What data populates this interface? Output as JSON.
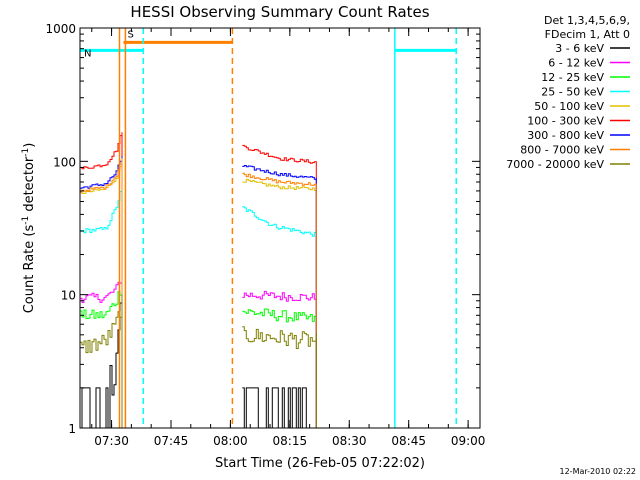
{
  "chart_data": {
    "type": "line",
    "title": "HESSI Observing Summary Count Rates",
    "xlabel": "Start Time (26-Feb-05 07:22:02)",
    "ylabel_main": "Count Rate (s",
    "ylabel_sup1": "-1",
    "ylabel_mid": " detector",
    "ylabel_sup2": "-1",
    "ylabel_end": ")",
    "yscale": "log",
    "ylim": [
      1,
      1000
    ],
    "xlim": [
      "07:22:02",
      "09:03:00"
    ],
    "xticks": [
      "07:30",
      "07:45",
      "08:00",
      "08:15",
      "08:30",
      "08:45",
      "09:00"
    ],
    "yticks": [
      "1",
      "10",
      "100",
      "1000"
    ],
    "legend_header": [
      "Det 1,3,4,5,6,9,",
      "FDecim 1, Att 0"
    ],
    "legend_position": "top-right outside",
    "timestamp": "12-Mar-2010 02:22",
    "flags": [
      {
        "label": "S",
        "color": "#ff8000",
        "level": 780,
        "start": "07:33:00",
        "end": "08:00:30"
      },
      {
        "label": "N",
        "color": "#00ffff",
        "level": 680,
        "start": "07:22:02",
        "end": "07:38:00"
      },
      {
        "label": "",
        "color": "#00ffff",
        "level": 680,
        "start": "08:41:30",
        "end": "08:57:00"
      }
    ],
    "vlines": [
      {
        "time": "07:32:00",
        "color": "#ff8000",
        "style": "solid"
      },
      {
        "time": "07:33:30",
        "color": "#ff8000",
        "style": "solid"
      },
      {
        "time": "07:38:00",
        "color": "#00ffff",
        "style": "dashed"
      },
      {
        "time": "08:00:30",
        "color": "#ff8000",
        "style": "dashed"
      },
      {
        "time": "08:41:30",
        "color": "#00ffff",
        "style": "solid"
      },
      {
        "time": "08:57:00",
        "color": "#00ffff",
        "style": "dashed"
      }
    ],
    "segments": [
      {
        "start": "07:22:02",
        "end": "07:33:00"
      },
      {
        "start": "08:03:00",
        "end": "08:22:00"
      }
    ],
    "series": [
      {
        "name": "3 - 6 keV",
        "color": "#000000",
        "seg1": [
          [
            0,
            1.0
          ],
          [
            0.6,
            1.5
          ],
          [
            0.8,
            3
          ],
          [
            0.9,
            6
          ],
          [
            1.0,
            12
          ]
        ],
        "seg2": [
          [
            0,
            1.2
          ],
          [
            0.5,
            1.2
          ],
          [
            0.9,
            1.0
          ],
          [
            1.0,
            1.0
          ]
        ],
        "noise": 0.5
      },
      {
        "name": "6 - 12 keV",
        "color": "#ff00ff",
        "seg1": [
          [
            0,
            9.5
          ],
          [
            0.6,
            9.5
          ],
          [
            0.85,
            11
          ],
          [
            1.0,
            14
          ]
        ],
        "seg2": [
          [
            0,
            10
          ],
          [
            1.0,
            9.5
          ]
        ],
        "noise": 0.08
      },
      {
        "name": "12 - 25 keV",
        "color": "#00ff00",
        "seg1": [
          [
            0,
            7
          ],
          [
            0.6,
            7
          ],
          [
            0.85,
            9
          ],
          [
            1.0,
            12
          ]
        ],
        "seg2": [
          [
            0,
            7.5
          ],
          [
            1.0,
            6.5
          ]
        ],
        "noise": 0.1
      },
      {
        "name": "25 - 50 keV",
        "color": "#00ffff",
        "seg1": [
          [
            0,
            30
          ],
          [
            0.6,
            31
          ],
          [
            0.85,
            45
          ],
          [
            1.0,
            65
          ]
        ],
        "seg2": [
          [
            0,
            45
          ],
          [
            0.4,
            33
          ],
          [
            1.0,
            28
          ]
        ],
        "noise": 0.04
      },
      {
        "name": "50 - 100 keV",
        "color": "#e0c000",
        "seg1": [
          [
            0,
            58
          ],
          [
            0.6,
            62
          ],
          [
            0.85,
            75
          ],
          [
            1.0,
            100
          ]
        ],
        "seg2": [
          [
            0,
            72
          ],
          [
            0.5,
            64
          ],
          [
            1.0,
            62
          ]
        ],
        "noise": 0.03
      },
      {
        "name": "100 - 300 keV",
        "color": "#ff0000",
        "seg1": [
          [
            0,
            88
          ],
          [
            0.6,
            95
          ],
          [
            0.85,
            120
          ],
          [
            1.0,
            170
          ]
        ],
        "seg2": [
          [
            0,
            130
          ],
          [
            0.5,
            105
          ],
          [
            1.0,
            98
          ]
        ],
        "noise": 0.03
      },
      {
        "name": "300 - 800 keV",
        "color": "#0000ff",
        "seg1": [
          [
            0,
            63
          ],
          [
            0.6,
            68
          ],
          [
            0.85,
            82
          ],
          [
            1.0,
            110
          ]
        ],
        "seg2": [
          [
            0,
            92
          ],
          [
            0.5,
            80
          ],
          [
            1.0,
            74
          ]
        ],
        "noise": 0.03
      },
      {
        "name": "800 - 7000 keV",
        "color": "#ff8000",
        "seg1": [
          [
            0,
            60
          ],
          [
            0.6,
            64
          ],
          [
            0.85,
            78
          ],
          [
            1.0,
            105
          ]
        ],
        "seg2": [
          [
            0,
            80
          ],
          [
            0.5,
            70
          ],
          [
            1.0,
            67
          ]
        ],
        "noise": 0.03
      },
      {
        "name": "7000 - 20000 keV",
        "color": "#808000",
        "seg1": [
          [
            0,
            4
          ],
          [
            0.6,
            4.5
          ],
          [
            0.85,
            6
          ],
          [
            1.0,
            9
          ]
        ],
        "seg2": [
          [
            0,
            5
          ],
          [
            1.0,
            4.5
          ]
        ],
        "noise": 0.15
      }
    ]
  }
}
